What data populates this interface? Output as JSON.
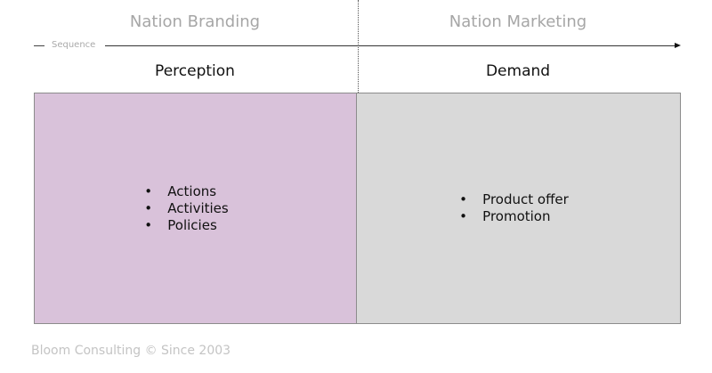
{
  "header": {
    "left_phase": "Nation Branding",
    "right_phase": "Nation Marketing",
    "sequence_label": "Sequence"
  },
  "columns": [
    {
      "title": "Perception",
      "color": "#d9c2da",
      "items": [
        "Actions",
        "Activities",
        "Policies"
      ]
    },
    {
      "title": "Demand",
      "color": "#d9d9d9",
      "items": [
        "Product offer",
        "Promotion"
      ]
    }
  ],
  "footer": "Bloom Consulting © Since 2003"
}
